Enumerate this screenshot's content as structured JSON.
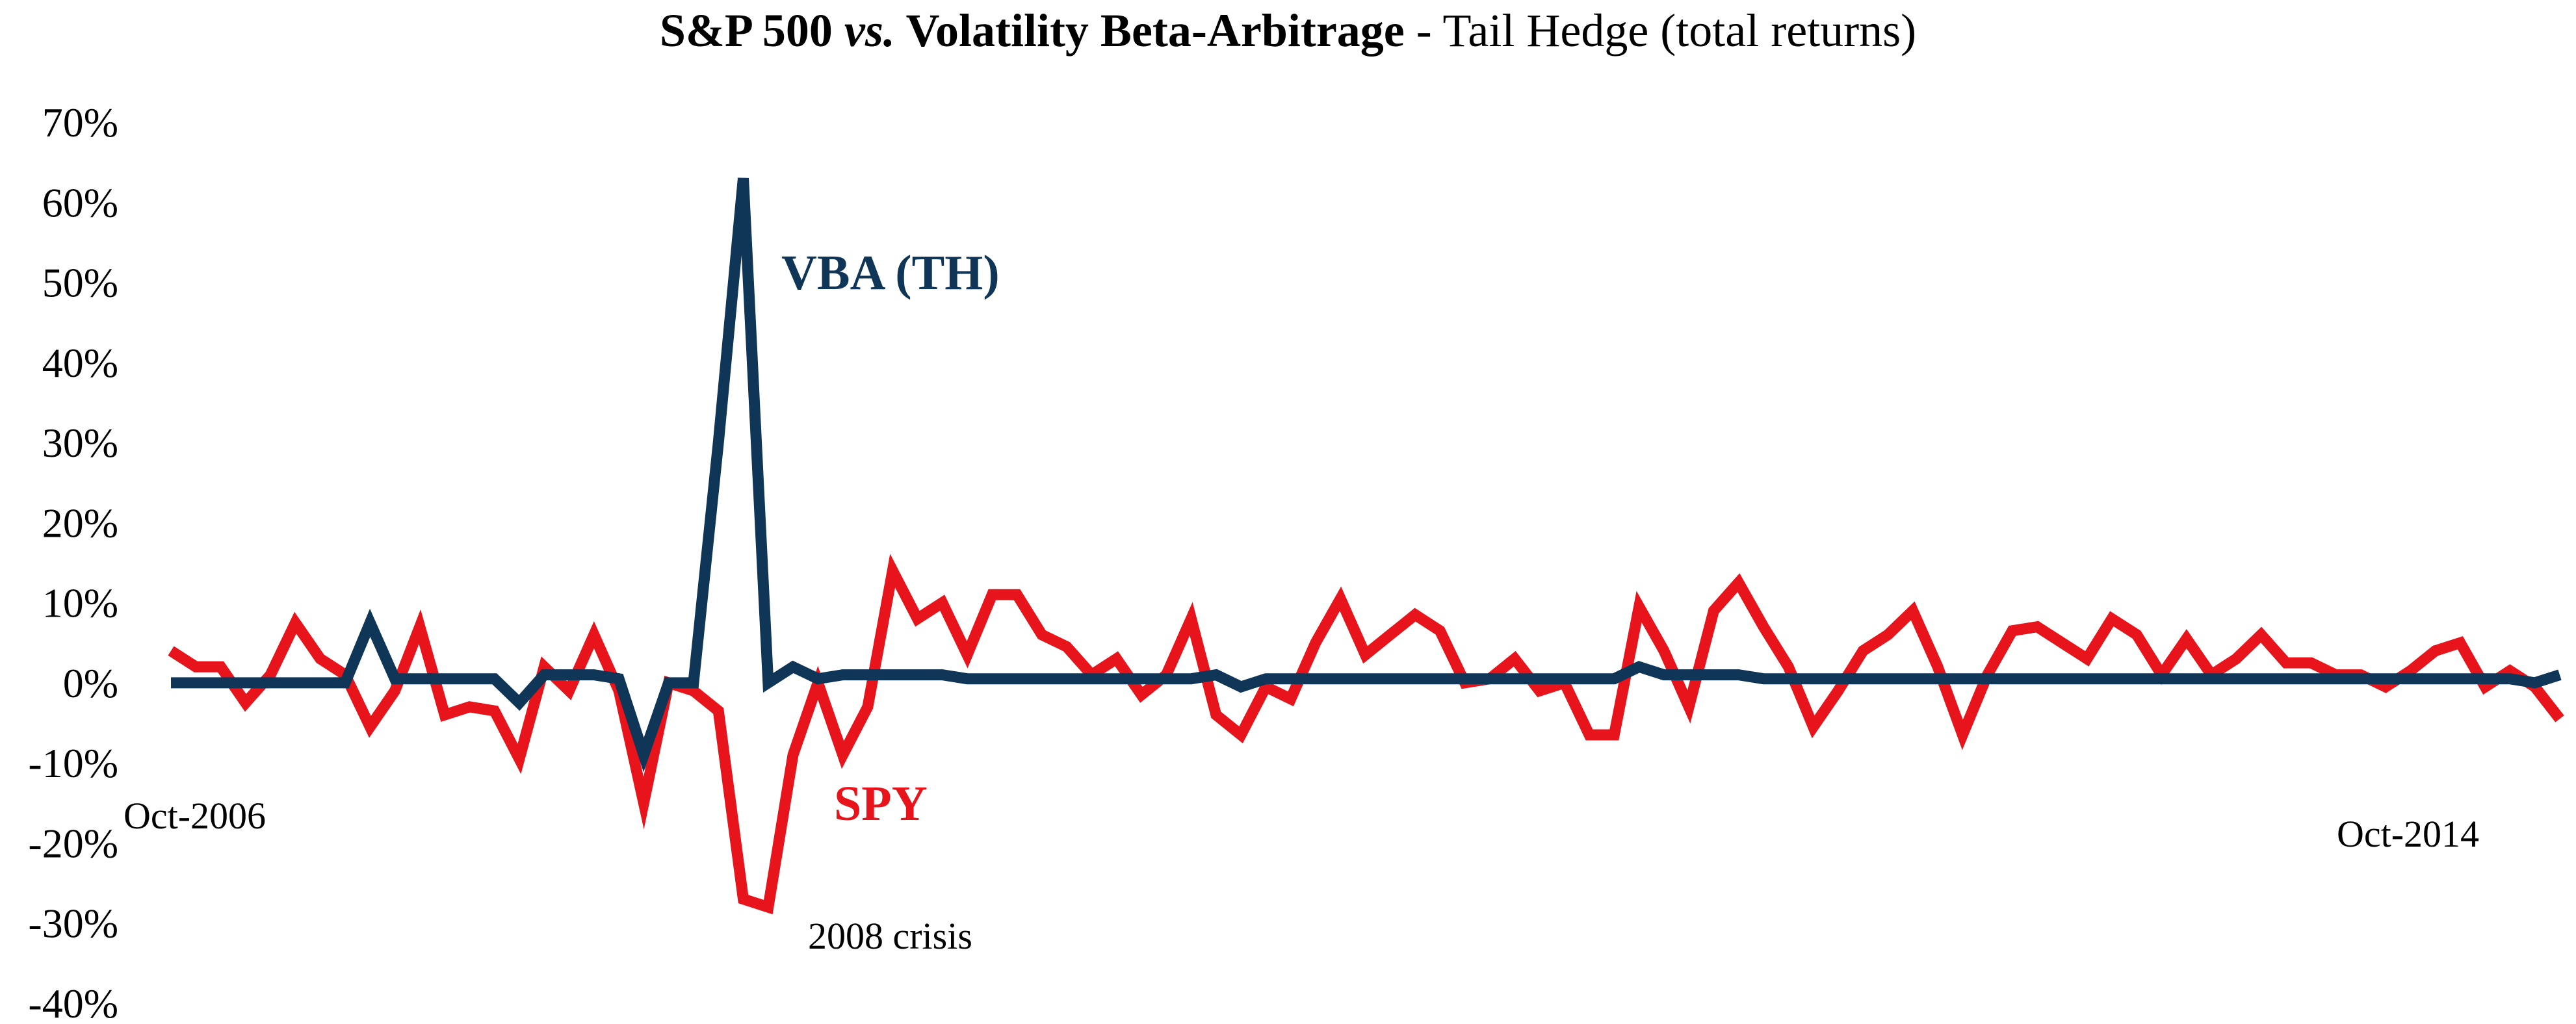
{
  "chart_data": {
    "type": "line",
    "title": {
      "part1": "S&P 500 ",
      "part2": "vs.",
      "part3": " Volatility Beta-Arbitrage",
      "part4": " - Tail Hedge (total returns)"
    },
    "ylim": [
      -40,
      70
    ],
    "yticks": [
      {
        "value": 70,
        "label": "70%"
      },
      {
        "value": 60,
        "label": "60%"
      },
      {
        "value": 50,
        "label": "50%"
      },
      {
        "value": 40,
        "label": "40%"
      },
      {
        "value": 30,
        "label": "30%"
      },
      {
        "value": 20,
        "label": "20%"
      },
      {
        "value": 10,
        "label": "10%"
      },
      {
        "value": 0,
        "label": "0%"
      },
      {
        "value": -10,
        "label": "-10%"
      },
      {
        "value": -20,
        "label": "-20%"
      },
      {
        "value": -30,
        "label": "-30%"
      },
      {
        "value": -40,
        "label": "-40%"
      }
    ],
    "x_start_label": "Oct-2006",
    "x_end_label": "Oct-2014",
    "annotation": "2008 crisis",
    "n_points": 97,
    "series": [
      {
        "name": "SPY",
        "color": "#e8141c",
        "values": [
          4,
          2,
          2,
          -2.5,
          1,
          7.5,
          3,
          1,
          -5.5,
          -1,
          7,
          -4,
          -3,
          -3.5,
          -9.5,
          2,
          -1,
          6,
          -1,
          -15,
          0,
          -1,
          -3.5,
          -27,
          -28,
          -9,
          0,
          -9,
          -3,
          14,
          8,
          10,
          3.5,
          11,
          11,
          6,
          4.5,
          1,
          3,
          -1.5,
          1,
          8,
          -4,
          -6.5,
          -0.5,
          -2,
          5,
          10.5,
          3.5,
          6,
          8.5,
          6.5,
          0,
          0.5,
          3,
          -1,
          0,
          -6.5,
          -6.5,
          9.5,
          4,
          -3,
          9,
          12.5,
          7,
          2,
          -5.5,
          -1,
          4,
          6,
          9,
          2,
          -6.5,
          1,
          6.5,
          7,
          5,
          3,
          8,
          6,
          1,
          5.5,
          1,
          3,
          6,
          2.5,
          2.5,
          1,
          1,
          -0.5,
          1.5,
          4,
          5,
          -0.5,
          1.5,
          -0.5,
          -4.5
        ]
      },
      {
        "name": "VBA (TH)",
        "color": "#0f3557",
        "values": [
          0,
          0,
          0,
          0,
          0,
          0,
          0,
          0,
          7.5,
          0.5,
          0.5,
          0.5,
          0.5,
          0.5,
          -2.5,
          1,
          1,
          1,
          0.5,
          -9,
          0,
          0,
          30,
          63,
          0,
          2,
          0.5,
          1,
          1,
          1,
          1,
          1,
          0.5,
          0.5,
          0.5,
          0.5,
          0.5,
          0.5,
          0.5,
          0.5,
          0.5,
          0.5,
          1,
          -0.5,
          0.5,
          0.5,
          0.5,
          0.5,
          0.5,
          0.5,
          0.5,
          0.5,
          0.5,
          0.5,
          0.5,
          0.5,
          0.5,
          0.5,
          0.5,
          2,
          1,
          1,
          1,
          1,
          0.5,
          0.5,
          0.5,
          0.5,
          0.5,
          0.5,
          0.5,
          0.5,
          0.5,
          0.5,
          0.5,
          0.5,
          0.5,
          0.5,
          0.5,
          0.5,
          0.5,
          0.5,
          0.5,
          0.5,
          0.5,
          0.5,
          0.5,
          0.5,
          0.5,
          0.5,
          0.5,
          0.5,
          0.5,
          0.5,
          0.5,
          0,
          1
        ]
      }
    ]
  }
}
